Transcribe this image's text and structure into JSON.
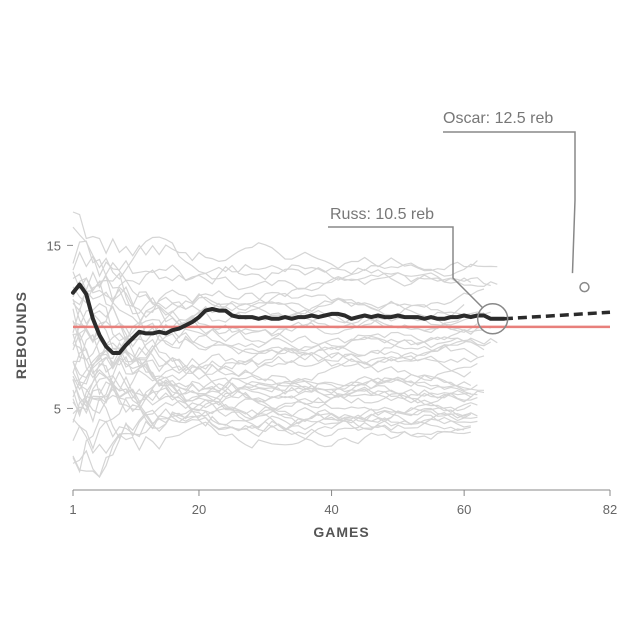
{
  "chart_data": {
    "type": "line",
    "xlabel": "GAMES",
    "ylabel": "REBOUNDS",
    "xlim": [
      1,
      82
    ],
    "ylim": [
      0,
      19.5
    ],
    "x_ticks": [
      {
        "value": 1,
        "label": "1"
      },
      {
        "value": 20,
        "label": "20"
      },
      {
        "value": 40,
        "label": "40"
      },
      {
        "value": 60,
        "label": "60"
      },
      {
        "value": 82,
        "label": "82"
      }
    ],
    "y_ticks": [
      {
        "value": 5,
        "label": "5"
      },
      {
        "value": 15,
        "label": "15"
      }
    ],
    "reference_line": {
      "y": 10,
      "color": "#e8807c"
    },
    "highlight_series": {
      "color": "#2b2b2b",
      "x": [
        1,
        2,
        3,
        4,
        5,
        6,
        7,
        8,
        9,
        10,
        11,
        12,
        13,
        14,
        15,
        16,
        17,
        18,
        19,
        20,
        21,
        22,
        23,
        24,
        25,
        26,
        27,
        28,
        29,
        30,
        31,
        32,
        33,
        34,
        35,
        36,
        37,
        38,
        39,
        40,
        41,
        42,
        43,
        44,
        45,
        46,
        47,
        48,
        49,
        50,
        51,
        52,
        53,
        54,
        55,
        56,
        57,
        58,
        59,
        60,
        61,
        62,
        63,
        64,
        65,
        66
      ],
      "y": [
        12.1,
        12.6,
        12.0,
        10.5,
        9.5,
        8.8,
        8.4,
        8.4,
        8.9,
        9.3,
        9.7,
        9.6,
        9.6,
        9.7,
        9.6,
        9.8,
        9.9,
        10.1,
        10.3,
        10.6,
        11.0,
        11.1,
        11.0,
        11.0,
        10.7,
        10.6,
        10.6,
        10.6,
        10.5,
        10.6,
        10.5,
        10.5,
        10.6,
        10.5,
        10.6,
        10.6,
        10.7,
        10.6,
        10.7,
        10.8,
        10.8,
        10.7,
        10.5,
        10.6,
        10.7,
        10.6,
        10.7,
        10.6,
        10.6,
        10.7,
        10.6,
        10.6,
        10.6,
        10.5,
        10.6,
        10.5,
        10.5,
        10.6,
        10.6,
        10.7,
        10.6,
        10.7,
        10.7,
        10.5,
        10.5,
        10.5
      ]
    },
    "projection": {
      "x": [
        66,
        82
      ],
      "y": [
        10.5,
        10.9
      ],
      "style": "dashed",
      "color": "#2b2b2b"
    },
    "background_series": {
      "color": "#d5d5d5",
      "x_start": 1,
      "y_range": [
        2,
        16
      ],
      "series": [
        {
          "start": 13.0,
          "end": 13.8,
          "x_end": 65
        },
        {
          "start": 15.0,
          "end": 13.2,
          "x_end": 65
        },
        {
          "start": 11.5,
          "end": 12.4,
          "x_end": 64
        },
        {
          "start": 14.0,
          "end": 11.8,
          "x_end": 63
        },
        {
          "start": 12.0,
          "end": 11.2,
          "x_end": 64
        },
        {
          "start": 9.0,
          "end": 10.8,
          "x_end": 63
        },
        {
          "start": 13.5,
          "end": 10.2,
          "x_end": 64
        },
        {
          "start": 10.5,
          "end": 9.9,
          "x_end": 62
        },
        {
          "start": 7.0,
          "end": 9.6,
          "x_end": 63
        },
        {
          "start": 11.0,
          "end": 9.3,
          "x_end": 65
        },
        {
          "start": 8.5,
          "end": 9.0,
          "x_end": 62
        },
        {
          "start": 12.5,
          "end": 8.7,
          "x_end": 63
        },
        {
          "start": 6.0,
          "end": 8.4,
          "x_end": 64
        },
        {
          "start": 9.5,
          "end": 8.1,
          "x_end": 62
        },
        {
          "start": 10.0,
          "end": 7.8,
          "x_end": 63
        },
        {
          "start": 5.0,
          "end": 7.5,
          "x_end": 61
        },
        {
          "start": 8.0,
          "end": 7.3,
          "x_end": 62
        },
        {
          "start": 11.5,
          "end": 7.0,
          "x_end": 63
        },
        {
          "start": 7.5,
          "end": 6.8,
          "x_end": 62
        },
        {
          "start": 4.5,
          "end": 6.6,
          "x_end": 61
        },
        {
          "start": 9.0,
          "end": 6.4,
          "x_end": 62
        },
        {
          "start": 6.5,
          "end": 6.2,
          "x_end": 63
        },
        {
          "start": 3.5,
          "end": 6.0,
          "x_end": 61
        },
        {
          "start": 8.0,
          "end": 5.8,
          "x_end": 62
        },
        {
          "start": 5.5,
          "end": 5.6,
          "x_end": 61
        },
        {
          "start": 10.0,
          "end": 5.4,
          "x_end": 62
        },
        {
          "start": 4.0,
          "end": 5.2,
          "x_end": 61
        },
        {
          "start": 7.0,
          "end": 5.0,
          "x_end": 62
        },
        {
          "start": 3.0,
          "end": 4.8,
          "x_end": 61
        },
        {
          "start": 6.0,
          "end": 4.6,
          "x_end": 61
        },
        {
          "start": 2.5,
          "end": 4.4,
          "x_end": 61
        },
        {
          "start": 5.0,
          "end": 4.2,
          "x_end": 62
        },
        {
          "start": 8.5,
          "end": 4.0,
          "x_end": 61
        },
        {
          "start": 4.5,
          "end": 3.8,
          "x_end": 62
        },
        {
          "start": 2.0,
          "end": 3.6,
          "x_end": 60
        },
        {
          "start": 6.5,
          "end": 3.4,
          "x_end": 61
        },
        {
          "start": 12.0,
          "end": 12.8,
          "x_end": 61
        },
        {
          "start": 16.0,
          "end": 14.2,
          "x_end": 62
        },
        {
          "start": 10.5,
          "end": 11.6,
          "x_end": 60
        },
        {
          "start": 9.5,
          "end": 10.4,
          "x_end": 61
        }
      ]
    },
    "annotations": {
      "russ": {
        "label": "Russ: 10.5 reb",
        "x": 64,
        "y": 10.5
      },
      "oscar": {
        "label": "Oscar: 12.5 reb",
        "x": 78,
        "y": 12.5
      }
    }
  }
}
